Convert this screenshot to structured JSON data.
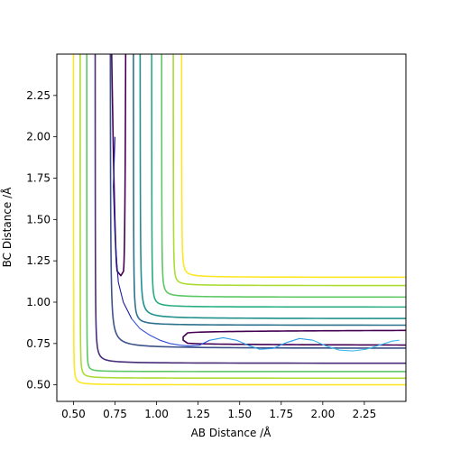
{
  "chart_data": {
    "type": "contour",
    "title": "",
    "xlabel": "AB Distance /Å",
    "ylabel": "BC Distance /Å",
    "xlim": [
      0.4,
      2.5
    ],
    "ylim": [
      0.4,
      2.5
    ],
    "xticks": [
      "0.50",
      "0.75",
      "1.00",
      "1.25",
      "1.50",
      "1.75",
      "2.00",
      "2.25"
    ],
    "yticks": [
      "0.50",
      "0.75",
      "1.00",
      "1.25",
      "1.50",
      "1.75",
      "2.00",
      "2.25"
    ],
    "grid": false,
    "colormap": "viridis",
    "contour_levels": [
      {
        "color": "#440154",
        "well_asymptote": 0.83,
        "wall": 0.785,
        "vertex": [
          0.79,
          0.785
        ],
        "inner_asymptote": 0.67,
        "inner_wall": 1.16
      },
      {
        "color": "#472c7a",
        "asymptote": 0.65,
        "vertex": [
          0.7,
          0.65
        ]
      },
      {
        "color": "#3b528b",
        "asymptote": 0.74,
        "vertex": [
          0.89,
          0.74
        ]
      },
      {
        "color": "#2c718e",
        "asymptote": 0.88,
        "vertex": [
          0.93,
          0.88
        ]
      },
      {
        "color": "#21908d",
        "asymptote": 0.92,
        "vertex": [
          1.0,
          0.92
        ]
      },
      {
        "color": "#27ad81",
        "asymptote": 0.99,
        "vertex": [
          1.02,
          0.99
        ]
      },
      {
        "color": "#5cc863",
        "asymptote": 1.05,
        "vertex": [
          1.08,
          1.05
        ]
      },
      {
        "color": "#aadc32",
        "asymptote": 1.12,
        "vertex": [
          1.14,
          1.12
        ]
      },
      {
        "color": "#fde725",
        "asymptote": 1.17,
        "vertex": [
          1.2,
          1.17
        ]
      },
      {
        "color": "#5cc863",
        "asymptote": 0.6,
        "vertex": [
          0.6,
          0.6
        ]
      },
      {
        "color": "#aadc32",
        "asymptote": 0.56,
        "vertex": [
          0.57,
          0.56
        ]
      },
      {
        "color": "#fde725",
        "asymptote": 0.52,
        "vertex": [
          0.53,
          0.52
        ]
      }
    ],
    "trajectory": {
      "x": [
        0.75,
        0.745,
        0.74,
        0.745,
        0.75,
        0.76,
        0.77,
        0.8,
        0.85,
        0.9,
        0.96,
        1.02,
        1.08,
        1.14,
        1.2,
        1.26,
        1.32,
        1.4,
        1.48,
        1.55,
        1.62,
        1.7,
        1.78,
        1.86,
        1.94,
        2.02,
        2.1,
        2.18,
        2.26,
        2.34,
        2.42,
        2.46
      ],
      "y": [
        2.0,
        1.85,
        1.7,
        1.55,
        1.4,
        1.25,
        1.12,
        1.0,
        0.9,
        0.84,
        0.8,
        0.77,
        0.75,
        0.74,
        0.735,
        0.74,
        0.77,
        0.785,
        0.77,
        0.74,
        0.715,
        0.72,
        0.755,
        0.78,
        0.77,
        0.735,
        0.71,
        0.705,
        0.715,
        0.74,
        0.765,
        0.77
      ],
      "colors": [
        "#1c1e9c",
        "#2f4fd6",
        "#2a9be8",
        "#3bbce8"
      ]
    }
  }
}
